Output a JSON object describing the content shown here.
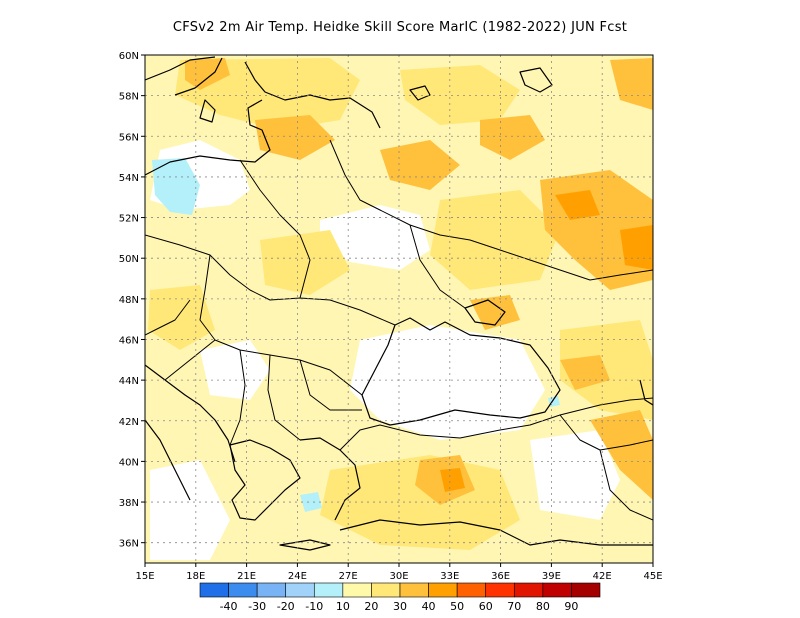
{
  "title": "CFSv2  2m Air Temp. Heidke Skill Score MarIC (1982-2022) JUN Fcst",
  "map": {
    "lon_range": [
      15,
      45
    ],
    "lat_range": [
      35,
      60
    ],
    "x_ticks": [
      "15E",
      "18E",
      "21E",
      "24E",
      "27E",
      "30E",
      "33E",
      "36E",
      "39E",
      "42E",
      "45E"
    ],
    "y_ticks": [
      "36N",
      "38N",
      "40N",
      "42N",
      "44N",
      "46N",
      "48N",
      "50N",
      "52N",
      "54N",
      "56N",
      "58N",
      "60N"
    ],
    "grid": "dotted"
  },
  "colorbar": {
    "labels": [
      "-40",
      "-30",
      "-20",
      "-10",
      "10",
      "20",
      "30",
      "40",
      "50",
      "60",
      "70",
      "80",
      "90"
    ],
    "colors": [
      "#1e6fe8",
      "#3c8cf0",
      "#78b4f5",
      "#a0d2fa",
      "#b4f0fa",
      "#fffaaa",
      "#ffe878",
      "#ffc03c",
      "#ffa000",
      "#ff6000",
      "#ff3200",
      "#e11400",
      "#c00000",
      "#a50000"
    ]
  },
  "shading_colors": {
    "light_yellow": "#fff6b4",
    "yellow": "#ffe878",
    "orange": "#ffc03c",
    "deep_orange": "#ffa000",
    "light_blue": "#b4f0fa"
  }
}
